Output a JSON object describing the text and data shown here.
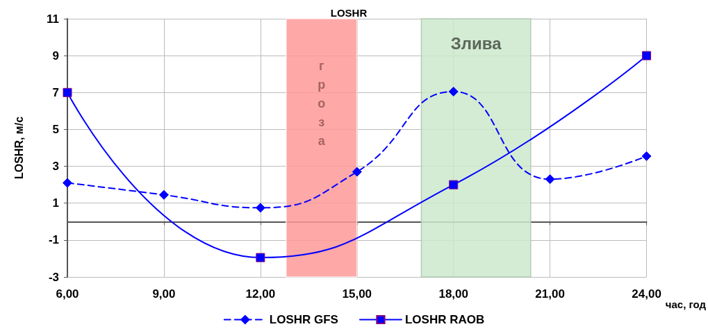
{
  "chart_data": {
    "type": "line",
    "title": "LOSHR",
    "xlabel": "час, год",
    "ylabel": "LOSHR, м/с",
    "x": [
      6,
      9,
      12,
      15,
      18,
      21,
      24
    ],
    "series": [
      {
        "name": "LOSHR GFS",
        "color": "#0000ff",
        "values": [
          2.1,
          1.45,
          0.75,
          2.7,
          7.05,
          2.3,
          3.55
        ],
        "marker": "diamond",
        "line_style": "dashed"
      },
      {
        "name": "LOSHR RAOB",
        "color": "#0000ff",
        "values": [
          7.0,
          null,
          -1.95,
          null,
          2.0,
          null,
          9.0
        ],
        "marker": "square",
        "line_style": "solid"
      }
    ],
    "xlim": [
      6,
      24
    ],
    "xticks": [
      {
        "value": 6,
        "label": "6,00"
      },
      {
        "value": 9,
        "label": "9,00"
      },
      {
        "value": 12,
        "label": "12,00"
      },
      {
        "value": 15,
        "label": "15,00"
      },
      {
        "value": 18,
        "label": "18,00"
      },
      {
        "value": 21,
        "label": "21,00"
      },
      {
        "value": 24,
        "label": "24,00"
      }
    ],
    "ylim": [
      -3,
      11
    ],
    "yticks": [
      -3,
      -1,
      1,
      3,
      5,
      7,
      9,
      11
    ],
    "bands": [
      {
        "axis": "x",
        "from": 12.8,
        "to": 15.0,
        "label": "гроза",
        "color": "#ff9999"
      },
      {
        "axis": "x",
        "from": 17.0,
        "to": 20.4,
        "label": "Злива",
        "color": "#cce8cc"
      }
    ],
    "grid": true,
    "legend": "bottom"
  }
}
